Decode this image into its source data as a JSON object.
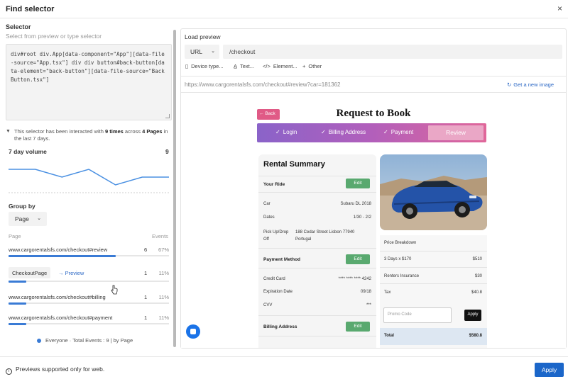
{
  "header": {
    "title": "Find selector",
    "close_glyph": "×"
  },
  "left": {
    "selector_label": "Selector",
    "selector_help": "Select from preview or type selector",
    "selector_value": "div#root div.App[data-component=\"App\"][data-file-source=\"App.tsx\"] div div button#back-button[data-element=\"back-button\"][data-file-source=\"BackButton.tsx\"]",
    "interaction": {
      "prefix": "This selector has been interacted with ",
      "times": "9 times",
      "mid": " across ",
      "pages": "4 Pages",
      "suffix": " in the last 7 days."
    },
    "volume_label": "7 day volume",
    "volume_value": "9",
    "sparkline": [
      5,
      5,
      4,
      5,
      3,
      4,
      4
    ],
    "group_by_label": "Group by",
    "group_by_value": "Page",
    "table": {
      "col_page": "Page",
      "col_events": "Events",
      "rows": [
        {
          "url": "www.cargorentalsfs.com/checkout#review",
          "count": "6",
          "pct": "67%",
          "fraction": 0.67
        },
        {
          "url": "CheckoutPage",
          "preview": "→ Preview",
          "count": "1",
          "pct": "11%",
          "fraction": 0.11
        },
        {
          "url": "www.cargorentalsfs.com/checkout#billing",
          "count": "1",
          "pct": "11%",
          "fraction": 0.11
        },
        {
          "url": "www.cargorentalsfs.com/checkout#payment",
          "count": "1",
          "pct": "11%",
          "fraction": 0.11
        }
      ]
    },
    "legend": "Everyone · Total Events : 9 | by Page"
  },
  "preview": {
    "label": "Load preview",
    "url_type": "URL",
    "url_value": "/checkout",
    "tools": [
      "Device type...",
      "Text...",
      "Element...",
      "Other"
    ],
    "address": "https://www.cargorentalsfs.com/checkout#review?car=181362",
    "new_image": "Get a new image",
    "page": {
      "back": "Back",
      "title": "Request to Book",
      "steps": [
        "Login",
        "Billing Address",
        "Payment"
      ],
      "active_step": "Review",
      "summary_title": "Rental Summary",
      "your_ride": "Your Ride",
      "edit": "Edit",
      "car_label": "Car",
      "car_value": "Subaru DL 2018",
      "dates_label": "Dates",
      "dates_value": "1/30 - 2/2",
      "pickup_label": "Pick Up/Drop Off",
      "pickup_value": "188 Cedar Street Lisbon 77940 Portugal",
      "payment_method": "Payment Method",
      "cc_label": "Credit Card",
      "cc_value": "**** **** **** 4242",
      "exp_label": "Expiration Date",
      "exp_value": "09/18",
      "cvv_label": "CVV",
      "cvv_value": "***",
      "billing_address": "Billing Address",
      "price_breakdown": "Price Breakdown",
      "line1_label": "3 Days x $170",
      "line1_value": "$510",
      "line2_label": "Renters Insurance",
      "line2_value": "$30",
      "line3_label": "Tax",
      "line3_value": "$40.8",
      "promo_placeholder": "Promo Code",
      "promo_apply": "Apply",
      "total_label": "Total",
      "total_value": "$580.8"
    }
  },
  "footer": {
    "info": "Previews supported only for web.",
    "apply": "Apply"
  },
  "colors": {
    "accent": "#1b66c9",
    "bar": "#3a7bd5",
    "edit": "#59a96f",
    "back": "#e05a86"
  }
}
